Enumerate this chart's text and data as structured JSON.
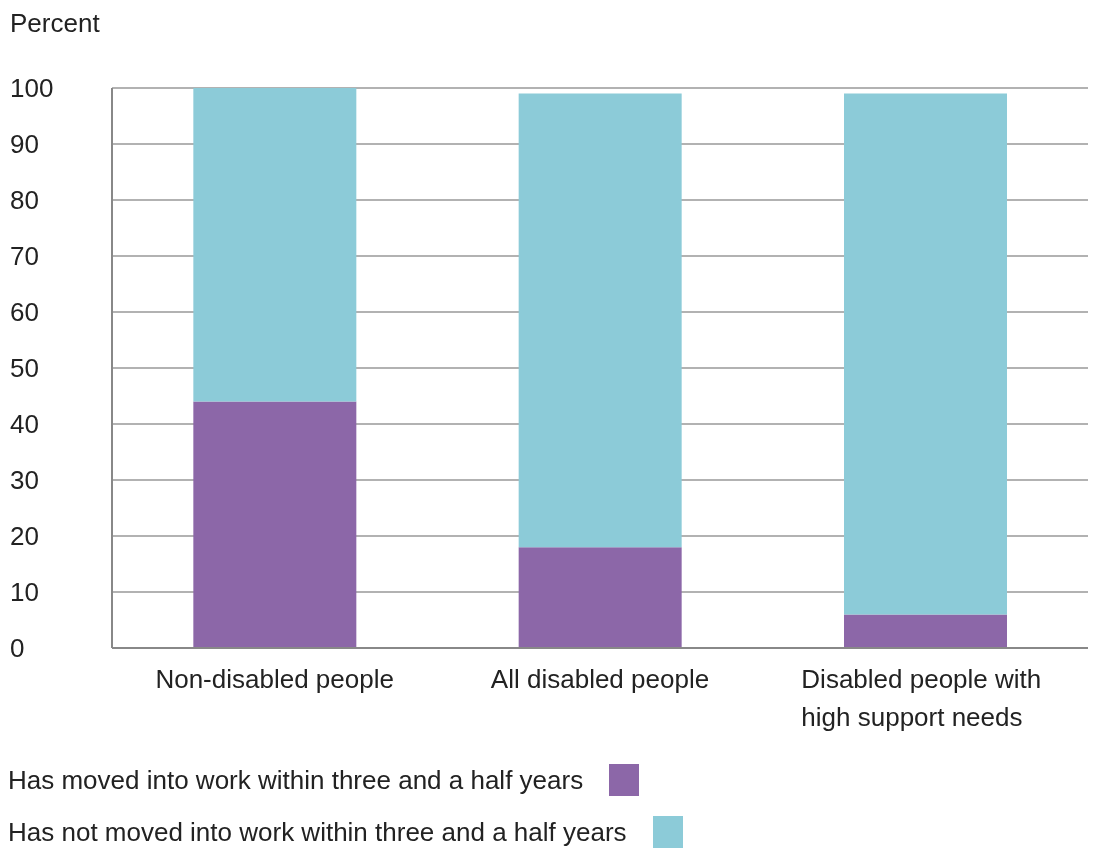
{
  "chart_data": {
    "type": "bar",
    "ylabel": "Percent",
    "stacked": true,
    "categories": [
      "Non-disabled people",
      "All disabled people",
      "Disabled people with high support needs"
    ],
    "series": [
      {
        "name": "Has moved into work within three and a half years",
        "color": "#8c67a8",
        "values": [
          44,
          18,
          6
        ]
      },
      {
        "name": "Has not moved into work within three and a half years",
        "color": "#8ccbd8",
        "values": [
          56,
          81,
          93
        ]
      }
    ],
    "ylim": [
      0,
      100
    ],
    "yticks": [
      0,
      10,
      20,
      30,
      40,
      50,
      60,
      70,
      80,
      90,
      100
    ],
    "grid": "y",
    "legend": "bottom"
  }
}
